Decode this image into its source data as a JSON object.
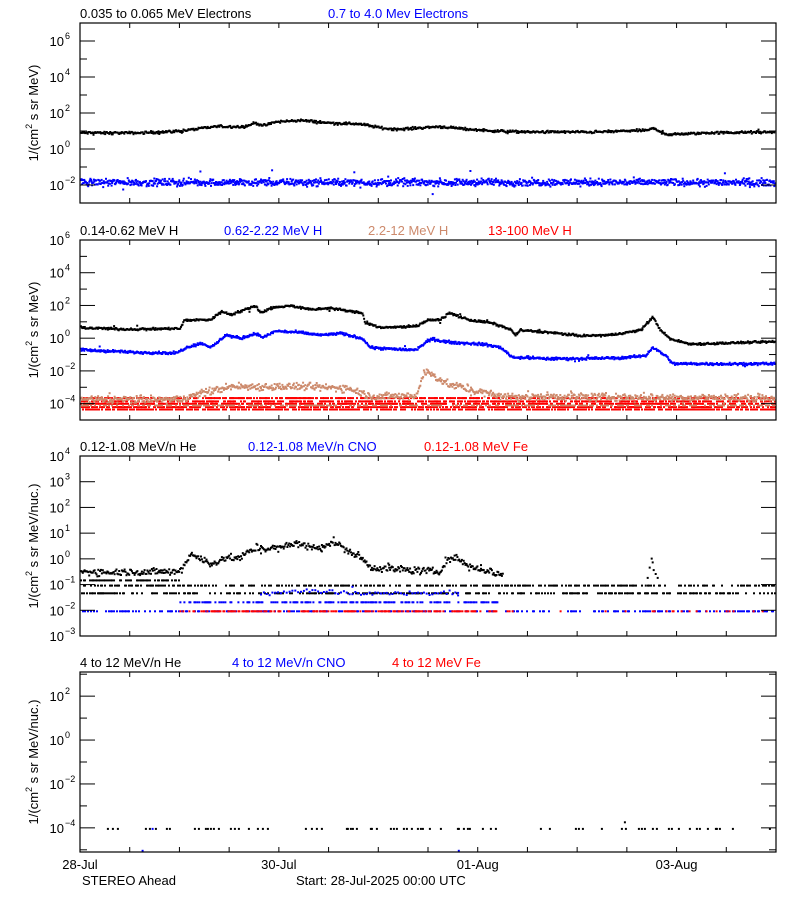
{
  "chart_data": {
    "type": "scatter",
    "x_axis": {
      "unit": "days since start",
      "range": [
        0,
        7
      ],
      "tick_labels": [
        {
          "day": 0,
          "label": "28-Jul"
        },
        {
          "day": 2,
          "label": "30-Jul"
        },
        {
          "day": 4,
          "label": "01-Aug"
        },
        {
          "day": 6,
          "label": "03-Aug"
        }
      ],
      "minor_tick_step_days": 0.5
    },
    "footer": {
      "spacecraft": "STEREO Ahead",
      "start": "Start: 28-Jul-2025 00:00 UTC"
    },
    "colors": {
      "black": "#000000",
      "blue": "#0000ff",
      "brown": "#cd8a6c",
      "red": "#ff0000"
    },
    "panels": [
      {
        "ylabel": [
          "1/(cm",
          "2",
          " s sr MeV)"
        ],
        "yscale": "log",
        "ylim_log10": [
          -3,
          7
        ],
        "major_exponents": [
          6,
          4,
          2,
          0,
          -2
        ],
        "minor_step": 1,
        "legend": [
          {
            "label": "0.035 to 0.065 MeV Electrons",
            "color": "black"
          },
          {
            "label": "0.7 to 4.0 Mev Electrons",
            "color": "blue"
          }
        ],
        "series": [
          {
            "name": "0.035 to 0.065 MeV Electrons",
            "color": "black",
            "kind": "trace",
            "spread": 0.06,
            "density": 1.2,
            "points_log10": [
              [
                0,
                0.95
              ],
              [
                0.6,
                0.95
              ],
              [
                1.0,
                1.05
              ],
              [
                1.35,
                1.3
              ],
              [
                1.45,
                1.3
              ],
              [
                1.65,
                1.3
              ],
              [
                1.75,
                1.5
              ],
              [
                1.85,
                1.35
              ],
              [
                1.95,
                1.55
              ],
              [
                2.2,
                1.65
              ],
              [
                2.5,
                1.5
              ],
              [
                2.8,
                1.45
              ],
              [
                3.05,
                1.2
              ],
              [
                3.2,
                1.15
              ],
              [
                3.6,
                1.3
              ],
              [
                4.0,
                1.1
              ],
              [
                4.4,
                1.0
              ],
              [
                5.2,
                1.0
              ],
              [
                5.7,
                1.1
              ],
              [
                5.75,
                1.2
              ],
              [
                5.9,
                0.85
              ],
              [
                6.3,
                0.95
              ],
              [
                7.0,
                1.0
              ]
            ]
          },
          {
            "name": "0.7 to 4.0 Mev Electrons",
            "color": "blue",
            "kind": "trace",
            "spread": 0.17,
            "density": 1.8,
            "points_log10": [
              [
                0,
                -1.8
              ],
              [
                7,
                -1.8
              ]
            ]
          }
        ]
      },
      {
        "ylabel": [
          "1/(cm",
          "2",
          " s sr MeV)"
        ],
        "yscale": "log",
        "ylim_log10": [
          -5,
          6
        ],
        "major_exponents": [
          6,
          4,
          2,
          0,
          -2,
          -4
        ],
        "minor_step": 1,
        "legend": [
          {
            "label": "0.14-0.62 MeV H",
            "color": "black"
          },
          {
            "label": "0.62-2.22 MeV H",
            "color": "blue"
          },
          {
            "label": "2.2-12 MeV H",
            "color": "brown"
          },
          {
            "label": "13-100 MeV H",
            "color": "red"
          }
        ],
        "series": [
          {
            "name": "13-100 MeV H",
            "color": "red",
            "kind": "band",
            "levels_log10": [
              -3.6,
              -3.8,
              -3.95,
              -4.15,
              -4.3
            ],
            "range": [
              0,
              7
            ],
            "fill": 0.55
          },
          {
            "name": "2.2-12 MeV H (low band)",
            "color": "brown",
            "kind": "band",
            "levels_log10": [
              -4.05
            ],
            "range": [
              0,
              7
            ],
            "fill": 0.4
          },
          {
            "name": "2.2-12 MeV H",
            "color": "brown",
            "kind": "trace",
            "spread": 0.2,
            "density": 1.4,
            "points_log10": [
              [
                0,
                -3.7
              ],
              [
                1.0,
                -3.7
              ],
              [
                1.21,
                -3.3
              ],
              [
                1.51,
                -2.9
              ],
              [
                2.21,
                -2.9
              ],
              [
                2.71,
                -3.0
              ],
              [
                2.91,
                -3.5
              ],
              [
                3.37,
                -3.5
              ],
              [
                3.45,
                -2.0
              ],
              [
                3.52,
                -2.1
              ],
              [
                3.67,
                -2.7
              ],
              [
                3.92,
                -3.1
              ],
              [
                4.22,
                -3.5
              ],
              [
                7.0,
                -3.6
              ]
            ]
          },
          {
            "name": "0.62-2.22 MeV H",
            "color": "blue",
            "kind": "trace",
            "spread": 0.07,
            "density": 1.5,
            "points_log10": [
              [
                0,
                -0.65
              ],
              [
                0.5,
                -0.8
              ],
              [
                0.96,
                -0.85
              ],
              [
                1.06,
                -0.5
              ],
              [
                1.21,
                -0.25
              ],
              [
                1.31,
                -0.5
              ],
              [
                1.46,
                0.25
              ],
              [
                1.61,
                0.05
              ],
              [
                1.76,
                0.35
              ],
              [
                1.83,
                0.1
              ],
              [
                1.96,
                0.5
              ],
              [
                2.21,
                0.4
              ],
              [
                2.41,
                0.25
              ],
              [
                2.61,
                0.35
              ],
              [
                2.83,
                0.05
              ],
              [
                2.91,
                -0.5
              ],
              [
                3.12,
                -0.6
              ],
              [
                3.37,
                -0.65
              ],
              [
                3.49,
                -0.1
              ],
              [
                3.54,
                0
              ],
              [
                3.72,
                -0.2
              ],
              [
                4.02,
                -0.3
              ],
              [
                4.22,
                -0.5
              ],
              [
                4.34,
                -1.1
              ],
              [
                4.72,
                -1.2
              ],
              [
                5.43,
                -1.15
              ],
              [
                5.68,
                -1.0
              ],
              [
                5.75,
                -0.5
              ],
              [
                5.88,
                -1.0
              ],
              [
                5.95,
                -1.5
              ],
              [
                7.0,
                -1.5
              ]
            ]
          },
          {
            "name": "0.14-0.62 MeV H",
            "color": "black",
            "kind": "trace",
            "spread": 0.06,
            "density": 1.3,
            "points_log10": [
              [
                0,
                0.7
              ],
              [
                0.5,
                0.6
              ],
              [
                1.0,
                0.65
              ],
              [
                1.04,
                1.15
              ],
              [
                1.31,
                1.2
              ],
              [
                1.41,
                1.7
              ],
              [
                1.51,
                1.5
              ],
              [
                1.76,
                2.05
              ],
              [
                1.81,
                1.6
              ],
              [
                1.91,
                1.9
              ],
              [
                2.11,
                2.05
              ],
              [
                2.31,
                1.8
              ],
              [
                2.51,
                1.9
              ],
              [
                2.71,
                1.7
              ],
              [
                2.83,
                1.6
              ],
              [
                2.86,
                1.0
              ],
              [
                3.02,
                0.7
              ],
              [
                3.37,
                0.8
              ],
              [
                3.49,
                1.15
              ],
              [
                3.62,
                1.2
              ],
              [
                3.7,
                1.6
              ],
              [
                3.92,
                1.15
              ],
              [
                4.12,
                1.0
              ],
              [
                4.32,
                0.6
              ],
              [
                4.37,
                0.25
              ],
              [
                4.42,
                0.55
              ],
              [
                4.72,
                0.4
              ],
              [
                5.03,
                0.2
              ],
              [
                5.33,
                0.25
              ],
              [
                5.63,
                0.55
              ],
              [
                5.75,
                1.35
              ],
              [
                5.83,
                0.55
              ],
              [
                5.93,
                0
              ],
              [
                6.13,
                -0.3
              ],
              [
                6.43,
                -0.25
              ],
              [
                7.0,
                -0.15
              ]
            ]
          }
        ]
      },
      {
        "ylabel": [
          "1/(cm",
          "2",
          " s sr MeV/nuc.)"
        ],
        "yscale": "log",
        "ylim_log10": [
          -3,
          4
        ],
        "major_exponents": [
          4,
          3,
          2,
          1,
          0,
          -1,
          -2,
          -3
        ],
        "minor_step": 0,
        "legend": [
          {
            "label": "0.12-1.08 MeV/n He",
            "color": "black"
          },
          {
            "label": "0.12-1.08 MeV/n CNO",
            "color": "blue"
          },
          {
            "label": "0.12-1.08 MeV Fe",
            "color": "red"
          }
        ],
        "series": [
          {
            "name": "0.12-1.08 MeV/n He",
            "color": "black",
            "kind": "trace",
            "spread": 0.12,
            "density": 1.1,
            "points_log10": [
              [
                0,
                -0.47
              ],
              [
                1.0,
                -0.47
              ],
              [
                1.04,
                -0.2
              ],
              [
                1.11,
                0.25
              ],
              [
                1.21,
                0.05
              ],
              [
                1.31,
                -0.2
              ],
              [
                1.41,
                0.05
              ],
              [
                1.61,
                0.1
              ],
              [
                1.76,
                0.45
              ],
              [
                2.01,
                0.45
              ],
              [
                2.16,
                0.65
              ],
              [
                2.36,
                0.45
              ],
              [
                2.56,
                0.7
              ],
              [
                2.66,
                0.4
              ],
              [
                2.81,
                0.1
              ],
              [
                2.91,
                -0.3
              ],
              [
                3.12,
                -0.35
              ],
              [
                3.62,
                -0.47
              ],
              [
                3.67,
                0
              ],
              [
                3.77,
                0.1
              ],
              [
                3.92,
                -0.27
              ],
              [
                4.22,
                -0.55
              ],
              [
                4.25,
                -0.55
              ]
            ]
          },
          {
            "name": "0.12-1.08 MeV/n He (low counts)",
            "color": "black",
            "kind": "band",
            "levels_log10": [
              -0.8
            ],
            "range": [
              0,
              1.0
            ],
            "fill": 0.5
          },
          {
            "name": "0.12-1.08 MeV/n He (low counts)",
            "color": "black",
            "kind": "band",
            "levels_log10": [
              -1.0,
              -1.3
            ],
            "range": [
              0,
              7
            ],
            "fill": 0.35
          },
          {
            "name": "0.12-1.08 MeV/n He spike",
            "color": "black",
            "kind": "points",
            "points_log10": [
              [
                5.7,
                -0.7
              ],
              [
                5.72,
                -0.3
              ],
              [
                5.74,
                0.05
              ],
              [
                5.75,
                -0.1
              ],
              [
                5.76,
                -0.4
              ],
              [
                5.78,
                -0.55
              ],
              [
                5.8,
                -0.7
              ],
              [
                5.68,
                -1.0
              ]
            ]
          },
          {
            "name": "0.12-1.08 MeV/n CNO",
            "color": "blue",
            "kind": "band",
            "levels_log10": [
              -2.0
            ],
            "range": [
              0,
              7
            ],
            "fill": 0.35
          },
          {
            "name": "0.12-1.08 MeV/n CNO",
            "color": "blue",
            "kind": "band",
            "levels_log10": [
              -1.65
            ],
            "range": [
              1.0,
              4.2
            ],
            "fill": 0.45
          },
          {
            "name": "0.12-1.08 MeV/n CNO",
            "color": "blue",
            "kind": "trace",
            "spread": 0.08,
            "density": 0.35,
            "points_log10": [
              [
                1.8,
                -1.35
              ],
              [
                2.3,
                -1.2
              ],
              [
                2.8,
                -1.3
              ],
              [
                3.7,
                -1.3
              ],
              [
                3.8,
                -1.3
              ]
            ]
          },
          {
            "name": "0.12-1.08 MeV Fe",
            "color": "red",
            "kind": "band",
            "levels_log10": [
              -2.0
            ],
            "range": [
              1.0,
              4.2
            ],
            "fill": 0.4
          },
          {
            "name": "0.12-1.08 MeV Fe",
            "color": "red",
            "kind": "band",
            "levels_log10": [
              -2.0
            ],
            "range": [
              4.2,
              7
            ],
            "fill": 0.08
          }
        ]
      },
      {
        "ylabel": [
          "1/(cm",
          "2",
          " s sr MeV/nuc.)"
        ],
        "yscale": "log",
        "ylim_log10": [
          -5.1,
          3.1
        ],
        "major_exponents": [
          2,
          0,
          -2,
          -4
        ],
        "minor_step": 1,
        "legend": [
          {
            "label": "4 to 12 MeV/n He",
            "color": "black"
          },
          {
            "label": "4 to 12 MeV/n CNO",
            "color": "blue"
          },
          {
            "label": "4 to 12 MeV Fe",
            "color": "red"
          }
        ],
        "series": [
          {
            "name": "4 to 12 MeV/n He",
            "color": "black",
            "kind": "band",
            "levels_log10": [
              -4.0
            ],
            "range": [
              0.2,
              7
            ],
            "fill": 0.1
          },
          {
            "name": "4 to 12 MeV/n He",
            "color": "black",
            "kind": "points",
            "points_log10": [
              [
                5.47,
                -3.7
              ]
            ]
          },
          {
            "name": "4 to 12 MeV/n CNO",
            "color": "blue",
            "kind": "points",
            "points_log10": [
              [
                0.62,
                -5.0
              ],
              [
                3.8,
                -5.0
              ],
              [
                0.72,
                -4.0
              ]
            ]
          }
        ]
      }
    ]
  }
}
